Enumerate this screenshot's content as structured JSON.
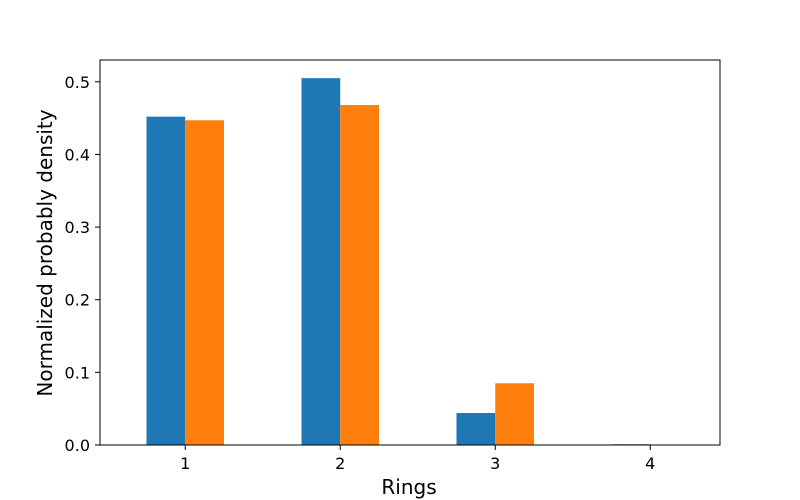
{
  "chart_data": {
    "type": "bar",
    "title": "",
    "xlabel": "Rings",
    "ylabel": "Normalized probably density",
    "categories": [
      "1",
      "2",
      "3",
      "4"
    ],
    "series": [
      {
        "values": [
          0.452,
          0.505,
          0.044,
          0.001
        ],
        "color": "#1f77b4"
      },
      {
        "values": [
          0.447,
          0.468,
          0.085,
          0.0
        ],
        "color": "#ff7f0e"
      }
    ],
    "xlim": [
      0.45,
      4.45
    ],
    "ylim": [
      0,
      0.53
    ],
    "yticks": [
      "0.0",
      "0.1",
      "0.2",
      "0.3",
      "0.4",
      "0.5"
    ],
    "ytick_values": [
      0,
      0.1,
      0.2,
      0.3,
      0.4,
      0.5
    ],
    "grid": false,
    "legend": "none"
  }
}
